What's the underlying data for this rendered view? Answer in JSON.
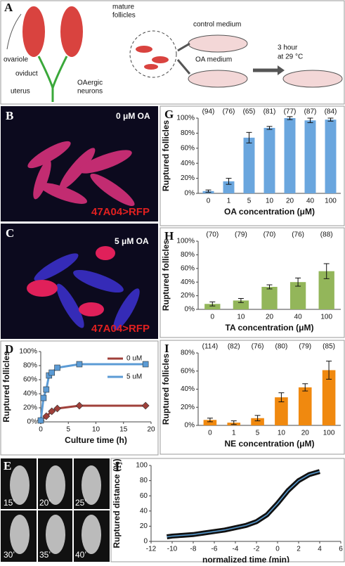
{
  "panel_a": {
    "letter": "A",
    "texts": [
      "mature",
      "follicles",
      "ovariole",
      "oviduct",
      "uterus",
      "OAergic",
      "neurons",
      "control medium",
      "OA medium",
      "3 hour",
      "at 29 °C"
    ]
  },
  "panel_b": {
    "letter": "B",
    "condition": "0 μM OA",
    "genotype": "47A04>RFP"
  },
  "panel_c": {
    "letter": "C",
    "condition": "5 μM OA",
    "genotype": "47A04>RFP"
  },
  "panel_e": {
    "letter": "E",
    "times": [
      "15’",
      "20’",
      "25’",
      "30’",
      "35’",
      "40’"
    ]
  },
  "chart_data": [
    {
      "type": "bar",
      "panel": "G",
      "categories": [
        "0",
        "1",
        "5",
        "10",
        "20",
        "40",
        "100"
      ],
      "values": [
        3,
        16,
        74,
        87,
        100,
        97,
        98
      ],
      "errors": [
        1.5,
        4,
        7,
        2,
        2,
        3,
        2
      ],
      "counts": [
        "(94)",
        "(76)",
        "(65)",
        "(81)",
        "(77)",
        "(87)",
        "(84)"
      ],
      "color": "#6aa6de",
      "ylim": [
        0,
        100
      ],
      "yticks": [
        {
          "value": 0,
          "label": "0%"
        },
        {
          "value": 20,
          "label": "20%"
        },
        {
          "value": 40,
          "label": "40%"
        },
        {
          "value": 60,
          "label": "60%"
        },
        {
          "value": 80,
          "label": "80%"
        },
        {
          "value": 100,
          "label": "100%"
        }
      ],
      "xlabel": "OA concentration (μM)",
      "ylabel": "Ruptured follicles"
    },
    {
      "type": "bar",
      "panel": "H",
      "categories": [
        "0",
        "10",
        "20",
        "40",
        "100"
      ],
      "values": [
        8,
        13,
        33,
        40,
        56
      ],
      "errors": [
        3,
        3,
        3,
        6,
        11
      ],
      "counts": [
        "(70)",
        "(79)",
        "(70)",
        "(76)",
        "(88)"
      ],
      "color": "#93b65a",
      "ylim": [
        0,
        100
      ],
      "yticks": [
        {
          "value": 0,
          "label": "0%"
        },
        {
          "value": 20,
          "label": "20%"
        },
        {
          "value": 40,
          "label": "40%"
        },
        {
          "value": 60,
          "label": "60%"
        },
        {
          "value": 80,
          "label": "80%"
        },
        {
          "value": 100,
          "label": "100%"
        }
      ],
      "xlabel": "TA concentration (μM)",
      "ylabel": "Ruptured follicles"
    },
    {
      "type": "bar",
      "panel": "I",
      "categories": [
        "0",
        "1",
        "5",
        "10",
        "20",
        "100"
      ],
      "values": [
        6,
        3,
        8,
        31,
        42,
        61
      ],
      "errors": [
        2,
        2,
        3,
        5,
        4,
        10
      ],
      "counts": [
        "(114)",
        "(82)",
        "(76)",
        "(80)",
        "(79)",
        "(85)"
      ],
      "color": "#f0890f",
      "ylim": [
        0,
        80
      ],
      "yticks": [
        {
          "value": 0,
          "label": "0%"
        },
        {
          "value": 20,
          "label": "20%"
        },
        {
          "value": 40,
          "label": "40%"
        },
        {
          "value": 60,
          "label": "60%"
        },
        {
          "value": 80,
          "label": "80%"
        }
      ],
      "xlabel": "NE concentration (μM)",
      "ylabel": "Ruptured follicles"
    },
    {
      "type": "line",
      "panel": "D",
      "series": [
        {
          "name": "0 uM",
          "color": "#a0403a",
          "marker": "diamond",
          "x": [
            0,
            1,
            2,
            3,
            7,
            19
          ],
          "values": [
            2,
            8,
            15,
            19,
            23,
            23
          ]
        },
        {
          "name": "5 uM",
          "color": "#5b9bd5",
          "marker": "square",
          "x": [
            0,
            0.5,
            1,
            1.5,
            2,
            3,
            7,
            19
          ],
          "values": [
            2,
            34,
            46,
            66,
            70,
            77,
            82,
            82
          ]
        }
      ],
      "xlim": [
        0,
        20
      ],
      "xticks": [
        0,
        5,
        10,
        15,
        20
      ],
      "ylim": [
        0,
        100
      ],
      "yticks": [
        {
          "value": 0,
          "label": "0%"
        },
        {
          "value": 20,
          "label": "20%"
        },
        {
          "value": 40,
          "label": "40%"
        },
        {
          "value": 60,
          "label": "60%"
        },
        {
          "value": 80,
          "label": "80%"
        },
        {
          "value": 100,
          "label": "100%"
        }
      ],
      "xlabel": "Culture time (h)",
      "ylabel": "Ruptured follicles"
    },
    {
      "type": "line",
      "panel": "F",
      "series": [
        {
          "color": "#5aa0d8",
          "marker": "none",
          "x": [
            -10.5,
            -10,
            -9,
            -8,
            -7,
            -6,
            -5,
            -4,
            -3,
            -2,
            -1,
            0,
            1,
            2,
            3,
            4
          ],
          "values": [
            6,
            7,
            8,
            9,
            11,
            13,
            15,
            18,
            21,
            26,
            35,
            50,
            67,
            80,
            88,
            92
          ]
        }
      ],
      "xlim": [
        -12,
        6
      ],
      "xticks": [
        -12,
        -10,
        -8,
        -6,
        -4,
        -2,
        0,
        2,
        4,
        6
      ],
      "ylim": [
        0,
        100
      ],
      "yticks": [
        0,
        20,
        40,
        60,
        80,
        100
      ],
      "xlabel": "normalized time (min)",
      "ylabel": "Ruptured distance (%)"
    }
  ]
}
